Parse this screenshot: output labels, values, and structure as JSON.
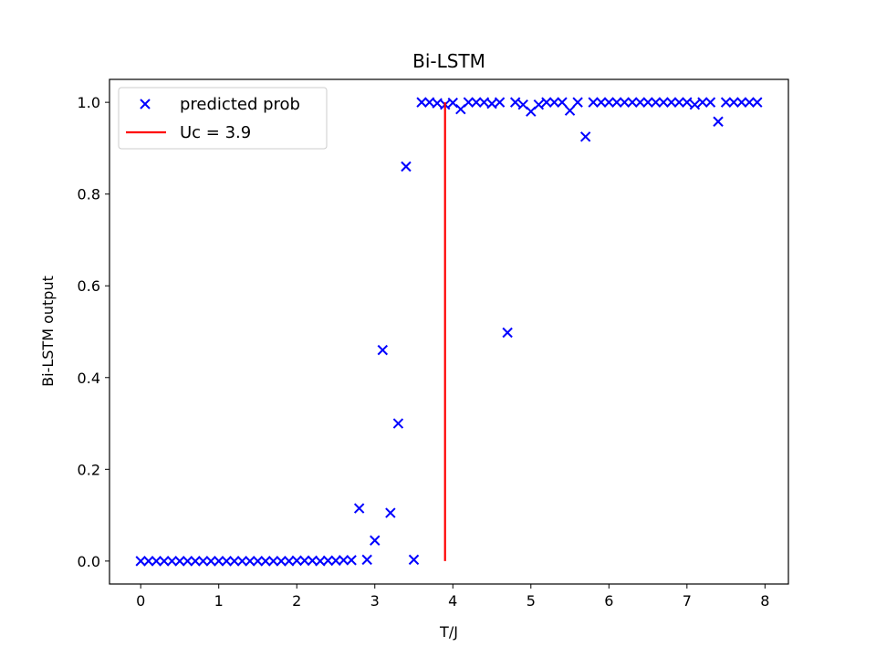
{
  "chart_data": {
    "type": "scatter",
    "title": "Bi-LSTM",
    "xlabel": "T/J",
    "ylabel": "Bi-LSTM output",
    "xlim": [
      -0.4,
      8.3
    ],
    "ylim": [
      -0.05,
      1.05
    ],
    "xticks": [
      "0",
      "1",
      "2",
      "3",
      "4",
      "5",
      "6",
      "7",
      "8"
    ],
    "yticks": [
      "0.0",
      "0.2",
      "0.4",
      "0.6",
      "0.8",
      "1.0"
    ],
    "grid": false,
    "legend_position": "top-left",
    "colors": {
      "scatter": "#0000ff",
      "line": "#ff0000"
    },
    "series": [
      {
        "name": "predicted prob",
        "kind": "scatter",
        "marker": "x",
        "x": [
          0.0,
          0.1,
          0.2,
          0.3,
          0.4,
          0.5,
          0.6,
          0.7,
          0.8,
          0.9,
          1.0,
          1.1,
          1.2,
          1.3,
          1.4,
          1.5,
          1.6,
          1.7,
          1.8,
          1.9,
          2.0,
          2.1,
          2.2,
          2.3,
          2.4,
          2.5,
          2.6,
          2.7,
          2.8,
          2.9,
          3.0,
          3.1,
          3.2,
          3.3,
          3.4,
          3.5,
          3.6,
          3.7,
          3.8,
          3.9,
          4.0,
          4.1,
          4.2,
          4.3,
          4.4,
          4.5,
          4.6,
          4.7,
          4.8,
          4.9,
          5.0,
          5.1,
          5.2,
          5.3,
          5.4,
          5.5,
          5.6,
          5.7,
          5.8,
          5.9,
          6.0,
          6.1,
          6.2,
          6.3,
          6.4,
          6.5,
          6.6,
          6.7,
          6.8,
          6.9,
          7.0,
          7.1,
          7.2,
          7.3,
          7.4,
          7.5,
          7.6,
          7.7,
          7.8,
          7.9
        ],
        "y": [
          0.0,
          0.0,
          0.0,
          0.0,
          0.0,
          0.0,
          0.0,
          0.0,
          0.0,
          0.0,
          0.0,
          0.0,
          0.0,
          0.0,
          0.0,
          0.0,
          0.0,
          0.0,
          0.0,
          0.0,
          0.001,
          0.001,
          0.001,
          0.0,
          0.001,
          0.001,
          0.002,
          0.002,
          0.115,
          0.003,
          0.045,
          0.46,
          0.105,
          0.3,
          0.86,
          0.003,
          1.0,
          1.0,
          0.998,
          0.995,
          0.999,
          0.985,
          1.0,
          1.0,
          1.0,
          0.997,
          1.0,
          0.498,
          1.0,
          0.995,
          0.98,
          0.995,
          1.0,
          1.0,
          1.0,
          0.982,
          1.0,
          0.925,
          1.0,
          1.0,
          1.0,
          1.0,
          1.0,
          1.0,
          1.0,
          1.0,
          1.0,
          1.0,
          1.0,
          1.0,
          1.0,
          0.995,
          1.0,
          1.0,
          0.958,
          1.0,
          1.0,
          1.0,
          1.0,
          1.0
        ]
      },
      {
        "name": "Uc = 3.9",
        "kind": "line",
        "x": [
          3.9,
          3.9
        ],
        "y": [
          0.0,
          1.0
        ]
      }
    ]
  }
}
